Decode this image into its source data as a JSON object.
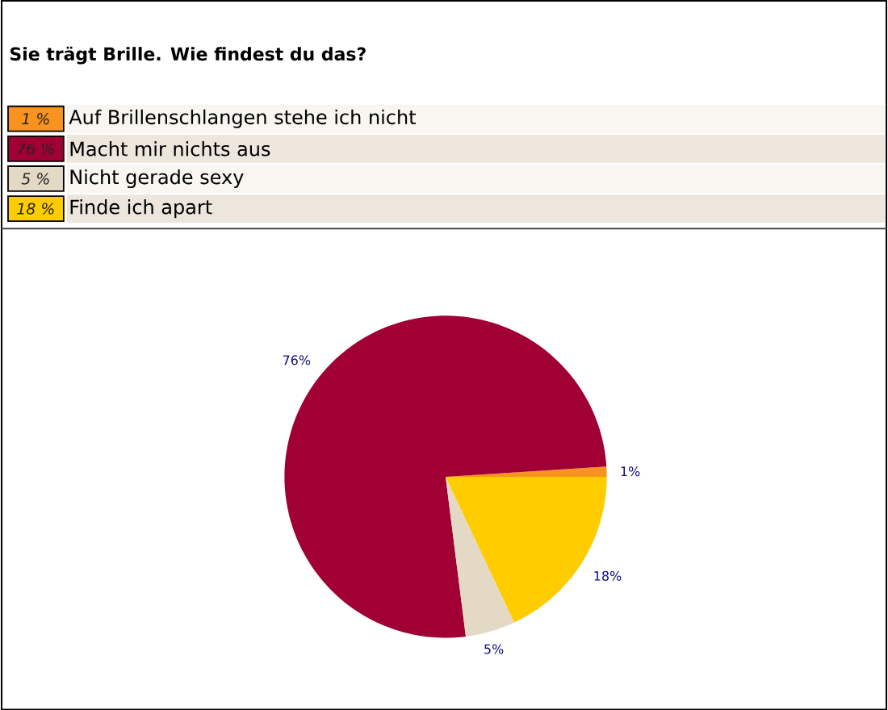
{
  "chart_data": {
    "type": "pie",
    "title": "Sie trägt Brille. Wie findest du das?",
    "categories": [
      "Auf Brillenschlangen stehe ich nicht",
      "Macht mir nichts aus",
      "Nicht gerade sexy",
      "Finde ich apart"
    ],
    "values": [
      1,
      76,
      5,
      18
    ],
    "colors": [
      "#f7931e",
      "#a00033",
      "#e3d9c5",
      "#ffcc00"
    ],
    "value_labels": [
      "1%",
      "76%",
      "5%",
      "18%"
    ],
    "annotations": [
      "1 %",
      "76 %",
      "5 %",
      "18 %"
    ],
    "legend": "top"
  }
}
